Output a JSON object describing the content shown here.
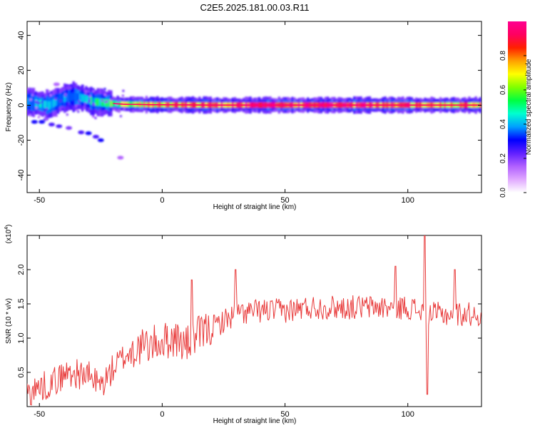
{
  "title": "C2E5.2025.181.00.03.R11",
  "chart_data": [
    {
      "type": "heatmap",
      "xlabel": "Height of straight line (km)",
      "ylabel": "Frequency (Hz)",
      "xlim": [
        -55,
        130
      ],
      "ylim": [
        -50,
        48
      ],
      "xticks": [
        -50,
        0,
        50,
        100
      ],
      "yticks": [
        -40,
        -20,
        0,
        20,
        40
      ],
      "colorbar": {
        "label": "Normalized spectral amplitude",
        "range": [
          0,
          1
        ],
        "ticks": [
          0.0,
          0.2,
          0.4,
          0.6,
          0.8
        ],
        "tick_labels": [
          "0.0",
          "0.2",
          "0.4",
          "0.6",
          "0.8"
        ],
        "colors": [
          "#ffffff",
          "#e0a8ff",
          "#b060ff",
          "#6020ff",
          "#0000ff",
          "#00a0ff",
          "#00ffd0",
          "#00ff40",
          "#80ff00",
          "#ffff00",
          "#ffa000",
          "#ff2000",
          "#ff0060",
          "#ff0090"
        ]
      },
      "band": [
        {
          "x": -54,
          "f": 2,
          "amp": 0.35
        },
        {
          "x": -50,
          "f": 1,
          "amp": 0.45
        },
        {
          "x": -46,
          "f": 0,
          "amp": 0.5
        },
        {
          "x": -43,
          "f": 2,
          "amp": 0.45
        },
        {
          "x": -40,
          "f": 4,
          "amp": 0.4
        },
        {
          "x": -36,
          "f": 5,
          "amp": 0.35
        },
        {
          "x": -32,
          "f": 4,
          "amp": 0.4
        },
        {
          "x": -28,
          "f": 2,
          "amp": 0.5
        },
        {
          "x": -24,
          "f": 1.5,
          "amp": 0.55
        },
        {
          "x": -20,
          "f": 1,
          "amp": 0.6
        },
        {
          "x": -15,
          "f": 0.5,
          "amp": 0.65
        },
        {
          "x": -10,
          "f": 0.5,
          "amp": 0.7
        },
        {
          "x": -5,
          "f": 0.3,
          "amp": 0.75
        },
        {
          "x": 0,
          "f": 0.3,
          "amp": 0.8
        },
        {
          "x": 10,
          "f": 0.2,
          "amp": 0.85
        },
        {
          "x": 20,
          "f": 0.1,
          "amp": 0.9
        },
        {
          "x": 40,
          "f": 0.1,
          "amp": 0.95
        },
        {
          "x": 60,
          "f": 0.1,
          "amp": 0.95
        },
        {
          "x": 80,
          "f": 0.1,
          "amp": 0.95
        },
        {
          "x": 100,
          "f": 0.1,
          "amp": 0.9
        },
        {
          "x": 110,
          "f": 0.1,
          "amp": 0.8
        },
        {
          "x": 120,
          "f": 0.1,
          "amp": 0.85
        },
        {
          "x": 130,
          "f": 0.1,
          "amp": 0.85
        }
      ],
      "scatter_features": [
        {
          "x": -52,
          "f": -9.5,
          "amp": 0.3
        },
        {
          "x": -49,
          "f": -9.5,
          "amp": 0.3
        },
        {
          "x": -45,
          "f": -11,
          "amp": 0.25
        },
        {
          "x": -42,
          "f": -12,
          "amp": 0.25
        },
        {
          "x": -38,
          "f": -13,
          "amp": 0.2
        },
        {
          "x": -33,
          "f": -15.5,
          "amp": 0.25
        },
        {
          "x": -30,
          "f": -16,
          "amp": 0.3
        },
        {
          "x": -27,
          "f": -18,
          "amp": 0.25
        },
        {
          "x": -25,
          "f": -20,
          "amp": 0.3
        },
        {
          "x": -17,
          "f": -30,
          "amp": 0.15
        },
        {
          "x": -38,
          "f": 10,
          "amp": 0.2
        },
        {
          "x": -43,
          "f": 12,
          "amp": 0.15
        }
      ]
    },
    {
      "type": "line",
      "xlabel": "Height of straight line (km)",
      "ylabel": "SNR (10 * v/v)",
      "y_multiplier": "(x10",
      "y_multiplier_exp": "4",
      "y_multiplier_close": ")",
      "xlim": [
        -55,
        130
      ],
      "ylim": [
        0,
        2.5
      ],
      "xticks": [
        -50,
        0,
        50,
        100
      ],
      "yticks": [
        0.5,
        1.0,
        1.5,
        2.0
      ],
      "ytick_labels": [
        "0.5",
        "1.0",
        "1.5",
        "2.0"
      ],
      "line_color": "#e83a3a",
      "trend": [
        {
          "x": -55,
          "y": 0.2
        },
        {
          "x": -45,
          "y": 0.35
        },
        {
          "x": -38,
          "y": 0.5
        },
        {
          "x": -30,
          "y": 0.45
        },
        {
          "x": -25,
          "y": 0.3
        },
        {
          "x": -20,
          "y": 0.55
        },
        {
          "x": -15,
          "y": 0.75
        },
        {
          "x": -10,
          "y": 0.85
        },
        {
          "x": -5,
          "y": 0.9
        },
        {
          "x": 0,
          "y": 0.95
        },
        {
          "x": 5,
          "y": 1.0
        },
        {
          "x": 10,
          "y": 0.9
        },
        {
          "x": 15,
          "y": 1.05
        },
        {
          "x": 20,
          "y": 1.15
        },
        {
          "x": 25,
          "y": 1.25
        },
        {
          "x": 30,
          "y": 1.35
        },
        {
          "x": 40,
          "y": 1.4
        },
        {
          "x": 50,
          "y": 1.4
        },
        {
          "x": 60,
          "y": 1.45
        },
        {
          "x": 70,
          "y": 1.45
        },
        {
          "x": 80,
          "y": 1.45
        },
        {
          "x": 90,
          "y": 1.45
        },
        {
          "x": 100,
          "y": 1.45
        },
        {
          "x": 110,
          "y": 1.35
        },
        {
          "x": 120,
          "y": 1.35
        },
        {
          "x": 130,
          "y": 1.35
        }
      ],
      "spikes": [
        {
          "x": 12,
          "y": 1.85
        },
        {
          "x": 30,
          "y": 2.0
        },
        {
          "x": 95,
          "y": 2.05
        },
        {
          "x": 107,
          "y": 2.5
        },
        {
          "x": 108,
          "y": 0.18
        },
        {
          "x": 119,
          "y": 2.0
        }
      ]
    }
  ]
}
